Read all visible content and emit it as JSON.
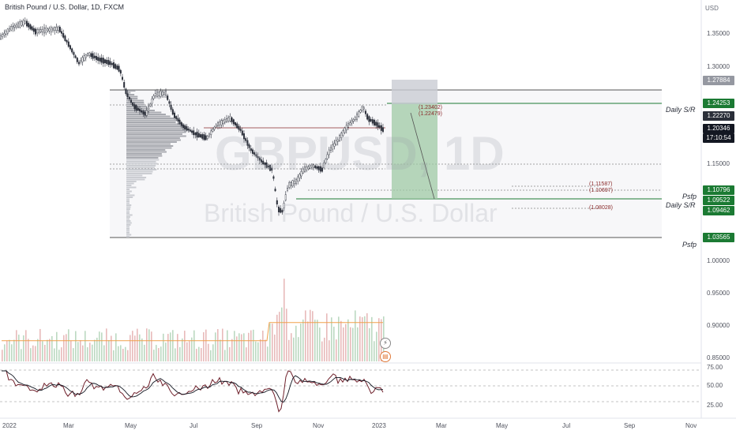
{
  "header": {
    "title": "British Pound / U.S. Dollar, 1D, FXCM",
    "currency": "USD"
  },
  "watermark": {
    "symbol": "GBPUSD, 1D",
    "name": "British Pound / U.S. Dollar"
  },
  "price_axis": {
    "ticks": [
      "1.35000",
      "1.30000",
      "1.15000",
      "1.00000",
      "0.95000",
      "0.90000",
      "0.85000"
    ]
  },
  "oscillator_axis": {
    "ticks": [
      "75.00",
      "50.00",
      "25.00"
    ]
  },
  "time_axis": {
    "labels": [
      "2022",
      "Mar",
      "May",
      "Jul",
      "Sep",
      "Nov",
      "2023",
      "Mar",
      "May",
      "Jul",
      "Sep",
      "Nov"
    ]
  },
  "price_badges": [
    {
      "value": "1.27884",
      "color": "#9598a1"
    },
    {
      "value": "1.24253",
      "color": "#1b7a33"
    },
    {
      "value": "1.22270",
      "color": "#2a2e39"
    },
    {
      "value": "1.20346",
      "color": "#131722"
    },
    {
      "value": "17:10:54",
      "color": "#131722"
    },
    {
      "value": "1.10796",
      "color": "#1b7a33"
    },
    {
      "value": "1.09522",
      "color": "#1b7a33"
    },
    {
      "value": "1.09462",
      "color": "#1b7a33"
    },
    {
      "value": "1.03565",
      "color": "#1b7a33"
    }
  ],
  "annotations": [
    {
      "text": "Daily S/R"
    },
    {
      "text": "Psfp"
    },
    {
      "text": "Daily S/R"
    },
    {
      "text": "Psfp"
    }
  ],
  "ob_labels": [
    "(1.23402)",
    "(1.22479)",
    "(1.11587)",
    "(1.10697)",
    "(1.08028)"
  ],
  "icons": {
    "alert": "lightning-icon",
    "calendar": "calendar-icon"
  },
  "colors": {
    "up": "#2a2e39",
    "down": "#2a2e39",
    "support": "#1b7a33",
    "resistance": "#8a2b2b",
    "target_zone": "#9fc9a4",
    "volume_ma": "#f0a04b",
    "rsi": "#6e1f2a"
  }
}
